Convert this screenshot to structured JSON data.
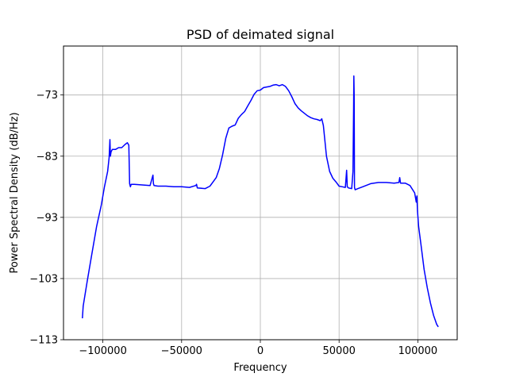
{
  "chart_data": {
    "type": "line",
    "title": "PSD of deimated signal",
    "xlabel": "Frequency",
    "ylabel": "Power Spectral Density (dB/Hz)",
    "xlim": [
      -125000,
      125000
    ],
    "ylim": [
      -113,
      -65
    ],
    "xticks": [
      -100000,
      -50000,
      0,
      50000,
      100000
    ],
    "xtick_labels": [
      "−100000",
      "−50000",
      "0",
      "50000",
      "100000"
    ],
    "yticks": [
      -113,
      -103,
      -93,
      -83,
      -73
    ],
    "ytick_labels": [
      "−113",
      "−103",
      "−93",
      "−83",
      "−73"
    ],
    "grid": true,
    "line_color": "#0000ff",
    "series": [
      {
        "x": [
          -113000,
          -112500,
          -110000,
          -107000,
          -104000,
          -101000,
          -99000,
          -97000,
          -96000,
          -95500,
          -95200,
          -94800,
          -94000,
          -92000,
          -90000,
          -88000,
          -86000,
          -84500,
          -83500,
          -83000,
          -82500,
          -82000,
          -80000,
          -75000,
          -70000,
          -68200,
          -67900,
          -67500,
          -65000,
          -60000,
          -55000,
          -50000,
          -45000,
          -41000,
          -40500,
          -40000,
          -35000,
          -32000,
          -30000,
          -28000,
          -26000,
          -24000,
          -22000,
          -20000,
          -18000,
          -16000,
          -14000,
          -12000,
          -10000,
          -8000,
          -6000,
          -4000,
          -2000,
          0,
          2000,
          4000,
          6000,
          8000,
          10000,
          12000,
          14000,
          16000,
          18000,
          20000,
          22000,
          24000,
          26000,
          28000,
          30000,
          32000,
          34000,
          36000,
          38000,
          39000,
          40000,
          42000,
          44000,
          46000,
          48000,
          50000,
          52000,
          54000,
          54800,
          55200,
          56000,
          58000,
          58800,
          59200,
          59400,
          59600,
          59800,
          60200,
          62000,
          65000,
          70000,
          75000,
          80000,
          85000,
          88000,
          88500,
          89000,
          92000,
          95000,
          98000,
          99000,
          99400,
          99800,
          100500,
          102000,
          104000,
          106000,
          108000,
          110000,
          112000,
          113000
        ],
        "y": [
          -109.5,
          -107.5,
          -103.5,
          -99.0,
          -94.5,
          -91.0,
          -88.0,
          -85.5,
          -83.2,
          -80.3,
          -83.0,
          -82.3,
          -81.9,
          -81.9,
          -81.6,
          -81.6,
          -81.1,
          -80.8,
          -81.2,
          -87.5,
          -88.0,
          -87.6,
          -87.6,
          -87.7,
          -87.8,
          -86.1,
          -87.5,
          -87.8,
          -87.9,
          -87.9,
          -88.0,
          -88.0,
          -88.1,
          -87.8,
          -87.6,
          -88.2,
          -88.3,
          -87.9,
          -87.2,
          -86.5,
          -85.0,
          -82.8,
          -80.1,
          -78.4,
          -78.1,
          -77.9,
          -76.8,
          -76.2,
          -75.7,
          -74.8,
          -73.9,
          -72.9,
          -72.3,
          -72.2,
          -71.8,
          -71.7,
          -71.6,
          -71.4,
          -71.3,
          -71.5,
          -71.3,
          -71.6,
          -72.3,
          -73.3,
          -74.4,
          -75.1,
          -75.6,
          -76.0,
          -76.4,
          -76.7,
          -76.9,
          -77.0,
          -77.2,
          -76.9,
          -78.0,
          -83.0,
          -85.5,
          -86.6,
          -87.2,
          -87.9,
          -88.0,
          -88.1,
          -85.3,
          -88.0,
          -88.2,
          -88.3,
          -85.5,
          -75.0,
          -69.9,
          -73.0,
          -88.1,
          -88.5,
          -88.3,
          -88.0,
          -87.5,
          -87.3,
          -87.3,
          -87.4,
          -87.3,
          -86.5,
          -87.4,
          -87.4,
          -87.8,
          -89.0,
          -90.5,
          -89.5,
          -92.0,
          -94.5,
          -97.5,
          -101.5,
          -104.5,
          -107.0,
          -109.0,
          -110.5,
          -110.9
        ]
      }
    ]
  }
}
